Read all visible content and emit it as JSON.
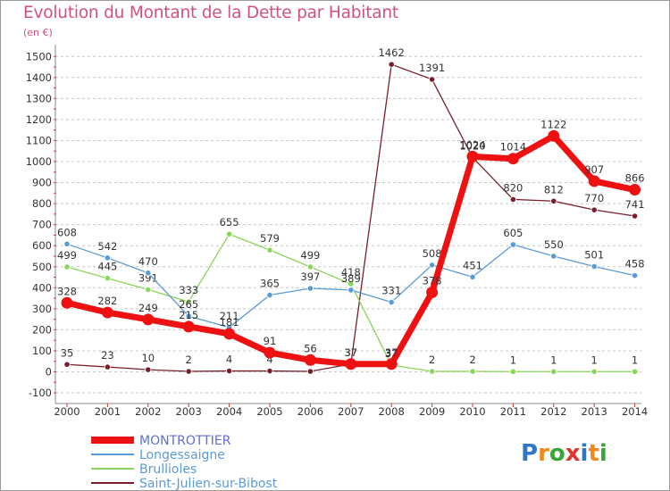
{
  "title": "Evolution du Montant de la Dette par Habitant",
  "unit": "(en €)",
  "logo": "Proxiti",
  "chart_data": {
    "type": "line",
    "title": "Evolution du Montant de la Dette par Habitant",
    "subtitle": "(en €)",
    "xlabel": "",
    "ylabel": "",
    "categories": [
      "2000",
      "2001",
      "2002",
      "2003",
      "2004",
      "2005",
      "2006",
      "2007",
      "2008",
      "2009",
      "2010",
      "2011",
      "2012",
      "2013",
      "2014"
    ],
    "yticks": [
      -100,
      0,
      100,
      200,
      300,
      400,
      500,
      600,
      700,
      800,
      900,
      1000,
      1100,
      1200,
      1300,
      1400,
      1500
    ],
    "ylim": [
      -100,
      1500
    ],
    "grid": "horizontal dashed",
    "legend_position": "bottom-left",
    "series": [
      {
        "name": "Saint-Julien-sur-Bibost",
        "color": "#7a1f2a",
        "values": [
          35,
          23,
          10,
          2,
          4,
          4,
          2,
          37,
          1462,
          1391,
          1020,
          820,
          812,
          770,
          741
        ],
        "labels": [
          "35",
          "23",
          "10",
          "2",
          "4",
          "4",
          "",
          "37",
          "1462",
          "1391",
          "1020",
          "820",
          "812",
          "770",
          "741"
        ]
      },
      {
        "name": "Brullioles",
        "color": "#88d65a",
        "values": [
          499,
          445,
          391,
          333,
          655,
          579,
          499,
          418,
          32,
          2,
          2,
          1,
          1,
          1,
          1
        ],
        "labels": [
          "499",
          "445",
          "391",
          "333",
          "655",
          "579",
          "499",
          "418",
          "32",
          "2",
          "2",
          "1",
          "1",
          "1",
          "1"
        ]
      },
      {
        "name": "Longessaigne",
        "color": "#5b9bd5",
        "values": [
          608,
          542,
          470,
          265,
          211,
          365,
          397,
          389,
          331,
          508,
          451,
          605,
          550,
          501,
          458
        ],
        "labels": [
          "608",
          "542",
          "470",
          "265",
          "211",
          "365",
          "397",
          "389",
          "331",
          "508",
          "451",
          "605",
          "550",
          "501",
          "458"
        ]
      },
      {
        "name": "MONTROTTIER",
        "color": "#ee1111",
        "values": [
          328,
          282,
          249,
          215,
          181,
          91,
          56,
          37,
          37,
          378,
          1024,
          1014,
          1122,
          907,
          866
        ],
        "labels": [
          "328",
          "282",
          "249",
          "215",
          "181",
          "91",
          "56",
          "37",
          "37",
          "378",
          "1024",
          "1014",
          "1122",
          "907",
          "866"
        ]
      }
    ]
  }
}
